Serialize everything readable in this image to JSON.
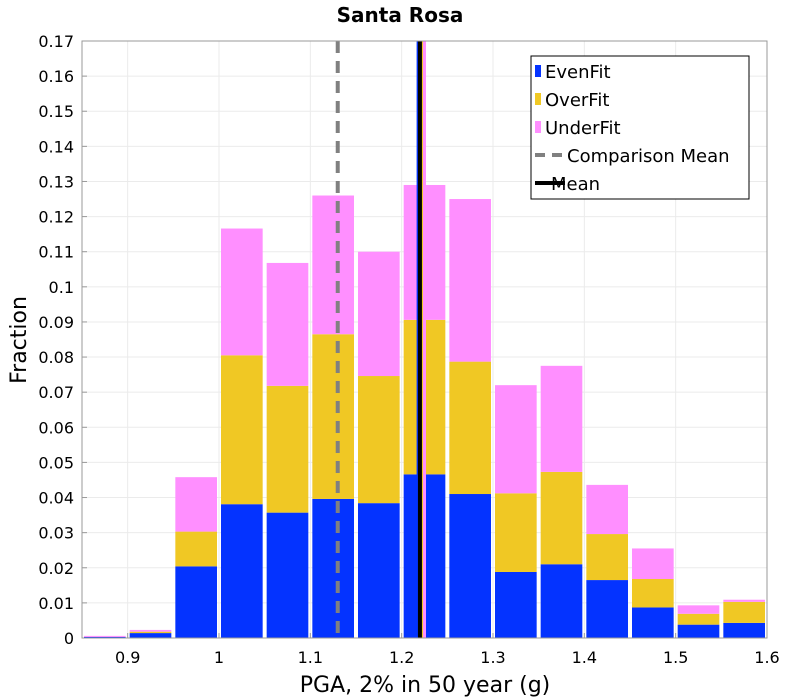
{
  "chart_data": {
    "type": "bar",
    "stacked": true,
    "title": "Santa Rosa",
    "xlabel": "PGA, 2% in 50 year (g)",
    "ylabel": "Fraction",
    "xlim": [
      0.85,
      1.6
    ],
    "ylim": [
      0,
      0.17
    ],
    "bin_width": 0.05,
    "bin_centers": [
      0.875,
      0.925,
      0.975,
      1.025,
      1.075,
      1.125,
      1.175,
      1.225,
      1.275,
      1.325,
      1.375,
      1.425,
      1.475,
      1.525,
      1.575
    ],
    "x_ticks": [
      0.9,
      1,
      1.1,
      1.2,
      1.3,
      1.4,
      1.5,
      1.6
    ],
    "x_tick_labels": [
      "0.9",
      "1",
      "1.1",
      "1.2",
      "1.3",
      "1.4",
      "1.5",
      "1.6"
    ],
    "y_ticks": [
      0,
      0.01,
      0.02,
      0.03,
      0.04,
      0.05,
      0.06,
      0.07,
      0.08,
      0.09,
      0.1,
      0.11,
      0.12,
      0.13,
      0.14,
      0.15,
      0.16,
      0.17
    ],
    "y_tick_labels": [
      "0",
      "0.01",
      "0.02",
      "0.03",
      "0.04",
      "0.05",
      "0.06",
      "0.07",
      "0.08",
      "0.09",
      "0.1",
      "0.11",
      "0.12",
      "0.13",
      "0.14",
      "0.15",
      "0.16",
      "0.17"
    ],
    "series": [
      {
        "name": "EvenFit",
        "color": "#0433ff",
        "values": [
          0.0003,
          0.0014,
          0.0204,
          0.0381,
          0.0357,
          0.0396,
          0.0384,
          0.0466,
          0.041,
          0.0188,
          0.021,
          0.0165,
          0.0087,
          0.0038,
          0.0043
        ]
      },
      {
        "name": "OverFit",
        "color": "#f0c824",
        "values": [
          0.0,
          0.0004,
          0.0099,
          0.0424,
          0.0361,
          0.0469,
          0.0362,
          0.044,
          0.0377,
          0.0224,
          0.0263,
          0.0131,
          0.0081,
          0.0031,
          0.006
        ]
      },
      {
        "name": "UnderFit",
        "color": "#ff8fff",
        "values": [
          0.0003,
          0.0005,
          0.0155,
          0.0361,
          0.035,
          0.0395,
          0.0354,
          0.0384,
          0.0463,
          0.0308,
          0.0302,
          0.014,
          0.0087,
          0.0024,
          0.0006
        ]
      }
    ],
    "lines": [
      {
        "name": "Comparison Mean",
        "x": 1.13,
        "color": "#808080",
        "style": "dashed"
      },
      {
        "name": "Mean",
        "x": 1.22,
        "color": "#000000",
        "style": "solid"
      }
    ],
    "extra_lines": [
      {
        "name": "EvenFit mean",
        "x": 1.218,
        "color": "#0433ff"
      },
      {
        "name": "OverFit mean",
        "x": 1.222,
        "color": "#f0c824"
      },
      {
        "name": "UnderFit mean",
        "x": 1.225,
        "color": "#ff8fff"
      }
    ],
    "legend": {
      "position": "top-right",
      "entries": [
        {
          "label": "EvenFit",
          "color": "#0433ff",
          "kind": "bar"
        },
        {
          "label": "OverFit",
          "color": "#f0c824",
          "kind": "bar"
        },
        {
          "label": "UnderFit",
          "color": "#ff8fff",
          "kind": "bar"
        },
        {
          "label": "Comparison Mean",
          "color": "#808080",
          "kind": "dashed"
        },
        {
          "label": "Mean",
          "color": "#000000",
          "kind": "solid"
        }
      ]
    },
    "grid": true
  }
}
